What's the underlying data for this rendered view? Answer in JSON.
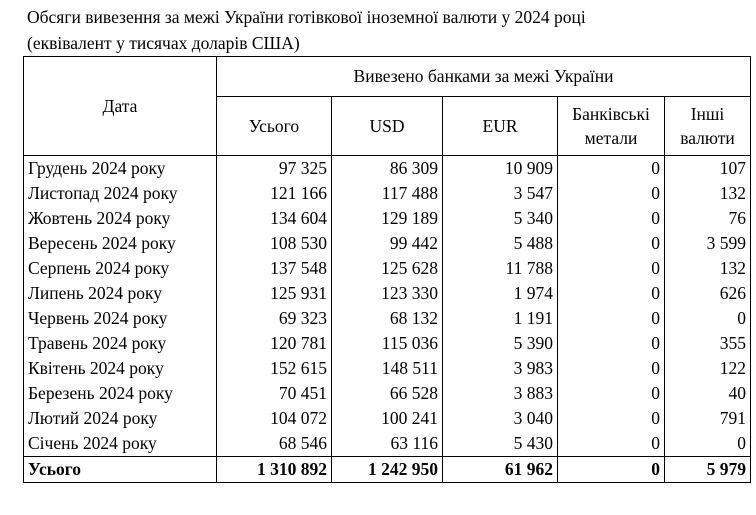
{
  "title": {
    "line1": "Обсяги вивезення за межі України готівкової іноземної валюти у 2024 році",
    "line2": "(еквівалент у тисячах доларів США)"
  },
  "header": {
    "date": "Дата",
    "group": "Вивезено банками за межі України",
    "columns": [
      "Усього",
      "USD",
      "EUR",
      "Банківські метали",
      "Інші валюти"
    ]
  },
  "rows": [
    {
      "date": "Грудень 2024 року",
      "total": "97 325",
      "usd": "86 309",
      "eur": "10 909",
      "metals": "0",
      "other": "107"
    },
    {
      "date": "Листопад 2024 року",
      "total": "121 166",
      "usd": "117 488",
      "eur": "3 547",
      "metals": "0",
      "other": "132"
    },
    {
      "date": "Жовтень 2024 року",
      "total": "134 604",
      "usd": "129 189",
      "eur": "5 340",
      "metals": "0",
      "other": "76"
    },
    {
      "date": "Вересень 2024 року",
      "total": "108 530",
      "usd": "99 442",
      "eur": "5 488",
      "metals": "0",
      "other": "3 599"
    },
    {
      "date": "Серпень 2024 року",
      "total": "137 548",
      "usd": "125 628",
      "eur": "11 788",
      "metals": "0",
      "other": "132"
    },
    {
      "date": "Липень 2024 року",
      "total": "125 931",
      "usd": "123 330",
      "eur": "1 974",
      "metals": "0",
      "other": "626"
    },
    {
      "date": "Червень 2024 року",
      "total": "69 323",
      "usd": "68 132",
      "eur": "1 191",
      "metals": "0",
      "other": "0"
    },
    {
      "date": "Травень 2024 року",
      "total": "120 781",
      "usd": "115 036",
      "eur": "5 390",
      "metals": "0",
      "other": "355"
    },
    {
      "date": "Квітень 2024 року",
      "total": "152 615",
      "usd": "148 511",
      "eur": "3 983",
      "metals": "0",
      "other": "122"
    },
    {
      "date": "Березень 2024 року",
      "total": "70 451",
      "usd": "66 528",
      "eur": "3 883",
      "metals": "0",
      "other": "40"
    },
    {
      "date": "Лютий 2024 року",
      "total": "104 072",
      "usd": "100 241",
      "eur": "3 040",
      "metals": "0",
      "other": "791"
    },
    {
      "date": "Січень 2024 року",
      "total": "68 546",
      "usd": "63 116",
      "eur": "5 430",
      "metals": "0",
      "other": "0"
    }
  ],
  "total": {
    "date": "Усього",
    "total": "1 310 892",
    "usd": "1 242 950",
    "eur": "61 962",
    "metals": "0",
    "other": "5 979"
  }
}
